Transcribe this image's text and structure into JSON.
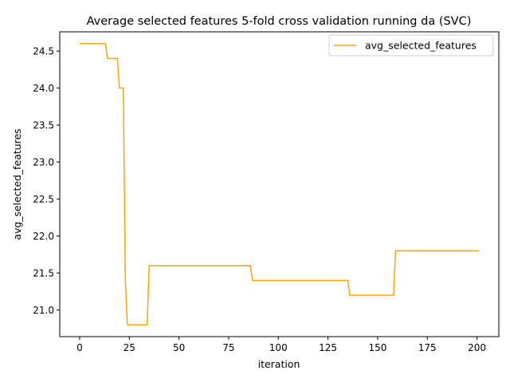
{
  "chart_data": {
    "type": "line",
    "title": "Average selected features 5-fold cross validation running da (SVC)",
    "xlabel": "iteration",
    "ylabel": "avg_selected_features",
    "xlim": [
      -10,
      211
    ],
    "ylim": [
      20.64,
      24.76
    ],
    "xticks": [
      0,
      25,
      50,
      75,
      100,
      125,
      150,
      175,
      200
    ],
    "yticks": [
      21.0,
      21.5,
      22.0,
      22.5,
      23.0,
      23.5,
      24.0,
      24.5
    ],
    "xtick_labels": [
      "0",
      "25",
      "50",
      "75",
      "100",
      "125",
      "150",
      "175",
      "200"
    ],
    "ytick_labels": [
      "21.0",
      "21.5",
      "22.0",
      "22.5",
      "23.0",
      "23.5",
      "24.0",
      "24.5"
    ],
    "grid": false,
    "legend_position": "top-right",
    "series": [
      {
        "name": "avg_selected_features",
        "color": "#ffa500",
        "points": [
          [
            0,
            24.6
          ],
          [
            13,
            24.6
          ],
          [
            14,
            24.4
          ],
          [
            19,
            24.4
          ],
          [
            20,
            24.0
          ],
          [
            22,
            24.0
          ],
          [
            23,
            21.4
          ],
          [
            24,
            20.8
          ],
          [
            34,
            20.8
          ],
          [
            35,
            21.6
          ],
          [
            86,
            21.6
          ],
          [
            87,
            21.4
          ],
          [
            135,
            21.4
          ],
          [
            136,
            21.2
          ],
          [
            158,
            21.2
          ],
          [
            159,
            21.8
          ],
          [
            201,
            21.8
          ]
        ]
      }
    ]
  }
}
